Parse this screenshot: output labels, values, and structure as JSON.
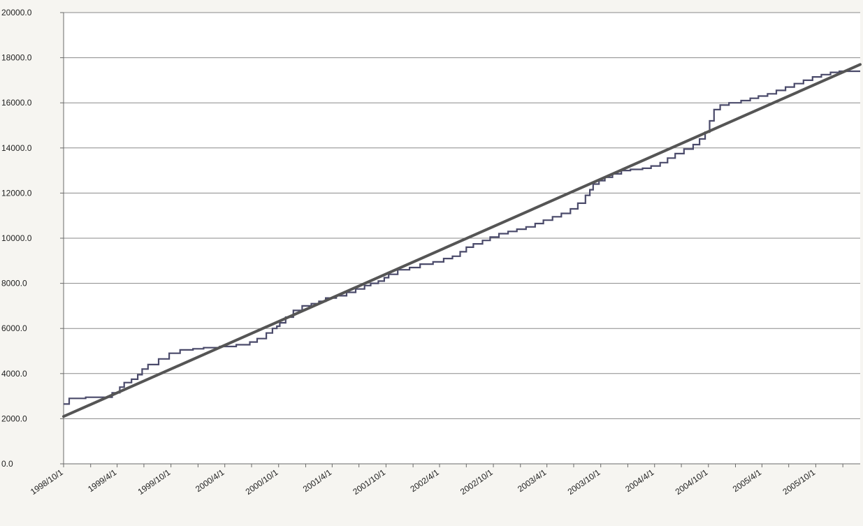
{
  "colors": {
    "background": "#f6f5f1",
    "plot_background": "#ffffff",
    "gridline": "#8a8a8a",
    "axis": "#6a6a6a",
    "actual_series": "#4a4a6a",
    "trend_series": "#555555"
  },
  "chart_data": {
    "type": "line",
    "title": "",
    "xlabel": "",
    "ylabel": "",
    "ylim": [
      0,
      20000
    ],
    "xlim": [
      "1998/10/1",
      "2006/3/1"
    ],
    "yticks": [
      0,
      2000,
      4000,
      6000,
      8000,
      10000,
      12000,
      14000,
      16000,
      18000,
      20000
    ],
    "ytick_labels": [
      "0.0",
      "2000.0",
      "4000.0",
      "6000.0",
      "8000.0",
      "10000.0",
      "12000.0",
      "14000.0",
      "16000.0",
      "18000.0",
      "20000.0"
    ],
    "xticks": [
      "1998/10/1",
      "1999/4/1",
      "1999/10/1",
      "2000/4/1",
      "2000/10/1",
      "2001/4/1",
      "2001/10/1",
      "2002/4/1",
      "2002/10/1",
      "2003/4/1",
      "2003/10/1",
      "2004/4/1",
      "2004/10/1",
      "2005/4/1",
      "2005/10/1"
    ],
    "minor_tick_months": 3,
    "grid": true,
    "legend": "none",
    "series": [
      {
        "style": "step",
        "x": [
          "1998/10/1",
          "1998/10/20",
          "1998/12/15",
          "1999/2/20",
          "1999/3/15",
          "1999/4/10",
          "1999/4/25",
          "1999/5/20",
          "1999/6/10",
          "1999/6/25",
          "1999/7/15",
          "1999/8/20",
          "1999/9/25",
          "1999/11/1",
          "1999/12/15",
          "2000/1/20",
          "2000/3/15",
          "2000/5/10",
          "2000/6/25",
          "2000/7/20",
          "2000/8/20",
          "2000/9/10",
          "2000/9/25",
          "2000/10/5",
          "2000/10/25",
          "2000/11/20",
          "2000/12/20",
          "2001/1/20",
          "2001/2/15",
          "2001/3/10",
          "2001/4/15",
          "2001/5/20",
          "2001/6/20",
          "2001/7/20",
          "2001/8/10",
          "2001/9/5",
          "2001/9/25",
          "2001/10/10",
          "2001/11/10",
          "2001/12/20",
          "2002/1/25",
          "2002/3/10",
          "2002/4/15",
          "2002/5/15",
          "2002/6/10",
          "2002/7/1",
          "2002/7/25",
          "2002/8/25",
          "2002/9/20",
          "2002/10/20",
          "2002/11/20",
          "2002/12/20",
          "2003/1/20",
          "2003/2/20",
          "2003/3/20",
          "2003/4/20",
          "2003/5/20",
          "2003/6/20",
          "2003/7/15",
          "2003/8/10",
          "2003/8/25",
          "2003/9/5",
          "2003/9/25",
          "2003/10/15",
          "2003/11/10",
          "2003/12/10",
          "2004/1/10",
          "2004/2/20",
          "2004/3/20",
          "2004/4/20",
          "2004/5/15",
          "2004/6/10",
          "2004/7/10",
          "2004/8/10",
          "2004/9/1",
          "2004/9/20",
          "2004/10/5",
          "2004/10/20",
          "2004/11/10",
          "2004/12/10",
          "2005/1/20",
          "2005/2/20",
          "2005/3/20",
          "2005/4/20",
          "2005/5/20",
          "2005/6/20",
          "2005/7/20",
          "2005/8/20",
          "2005/9/20",
          "2005/10/20",
          "2005/11/20",
          "2005/12/20",
          "2006/1/20",
          "2006/3/1"
        ],
        "y": [
          2650,
          2900,
          2950,
          2950,
          3150,
          3400,
          3600,
          3750,
          3950,
          4200,
          4400,
          4650,
          4900,
          5050,
          5100,
          5150,
          5200,
          5280,
          5400,
          5550,
          5800,
          6000,
          6100,
          6250,
          6500,
          6800,
          7000,
          7100,
          7200,
          7350,
          7450,
          7600,
          7750,
          7900,
          8000,
          8100,
          8250,
          8400,
          8600,
          8700,
          8850,
          8950,
          9100,
          9200,
          9400,
          9600,
          9750,
          9900,
          10050,
          10200,
          10300,
          10400,
          10500,
          10650,
          10800,
          10950,
          11100,
          11300,
          11550,
          11900,
          12150,
          12400,
          12550,
          12700,
          12850,
          13000,
          13050,
          13100,
          13200,
          13350,
          13550,
          13750,
          13950,
          14150,
          14400,
          14700,
          15200,
          15700,
          15900,
          16000,
          16100,
          16200,
          16300,
          16400,
          16550,
          16700,
          16850,
          17000,
          17150,
          17250,
          17350,
          17400,
          17400,
          17400
        ]
      },
      {
        "style": "line",
        "x": [
          "1998/10/1",
          "2006/3/1"
        ],
        "y": [
          2100,
          17700
        ]
      }
    ]
  }
}
